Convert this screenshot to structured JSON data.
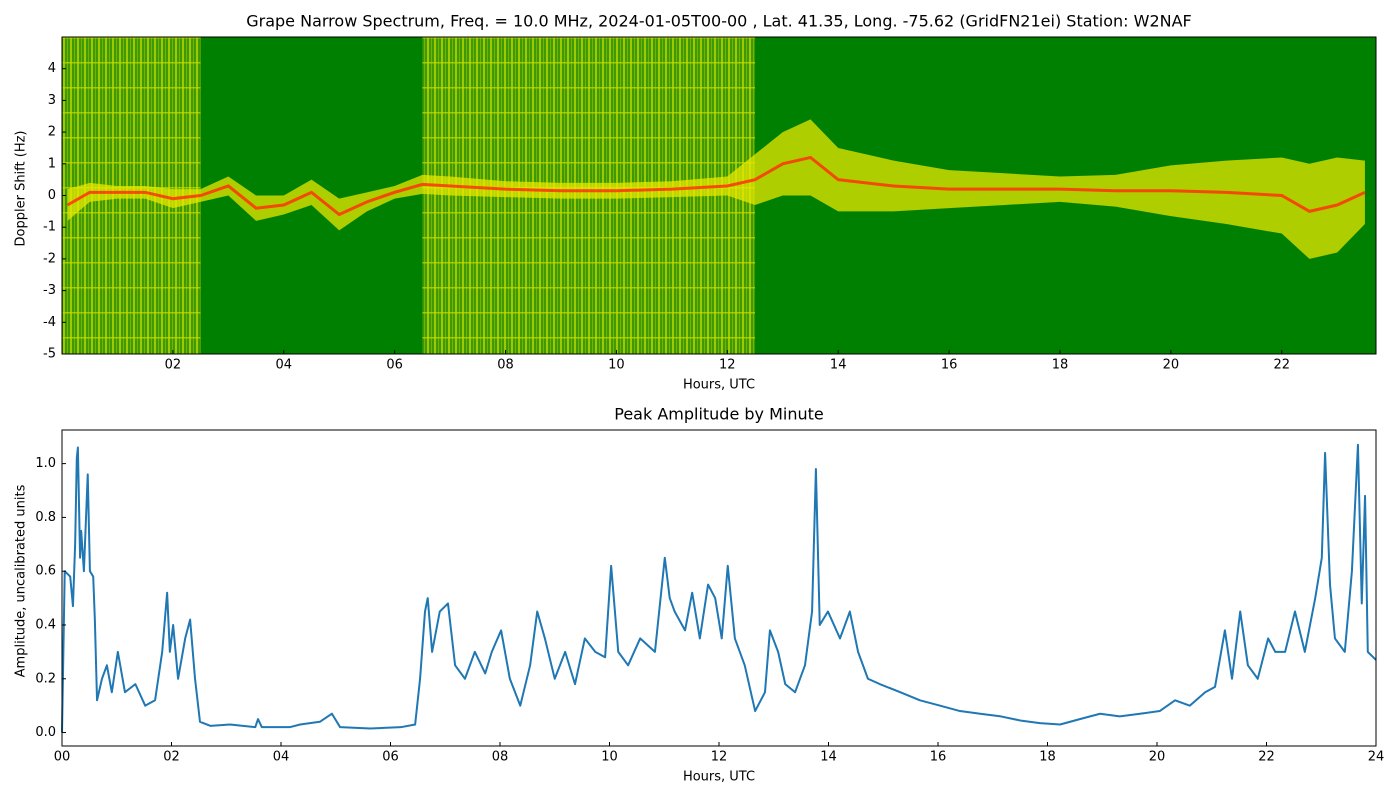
{
  "chart_data": [
    {
      "type": "spectrogram",
      "title": "Grape Narrow Spectrum, Freq. = 10.0 MHz, 2024-01-05T00-00 , Lat.  41.35, Long. -75.62 (GridFN21ei) Station: W2NAF",
      "xlabel": "Hours, UTC",
      "ylabel": "Doppler Shift (Hz)",
      "xlim": [
        0,
        23.7
      ],
      "ylim": [
        -5,
        5
      ],
      "xticks": [
        {
          "value": 2,
          "label": "02"
        },
        {
          "value": 4,
          "label": "04"
        },
        {
          "value": 6,
          "label": "06"
        },
        {
          "value": 8,
          "label": "08"
        },
        {
          "value": 10,
          "label": "10"
        },
        {
          "value": 12,
          "label": "12"
        },
        {
          "value": 14,
          "label": "14"
        },
        {
          "value": 16,
          "label": "16"
        },
        {
          "value": 18,
          "label": "18"
        },
        {
          "value": 20,
          "label": "20"
        },
        {
          "value": 22,
          "label": "22"
        }
      ],
      "yticks": [
        -5,
        -4,
        -3,
        -2,
        -1,
        0,
        1,
        2,
        3,
        4
      ],
      "background_color": "#008000",
      "spread_color": "#e8e800",
      "trace_color": "#ff3300",
      "active_intervals": [
        [
          0,
          2.5
        ],
        [
          6.5,
          12.5
        ]
      ],
      "x": [
        0.1,
        0.5,
        1,
        1.5,
        2,
        2.5,
        3,
        3.5,
        4,
        4.5,
        5,
        5.5,
        6,
        6.5,
        7,
        8,
        9,
        10,
        11,
        12,
        12.5,
        13,
        13.5,
        14,
        15,
        16,
        17,
        18,
        19,
        20,
        21,
        22,
        22.5,
        23,
        23.5
      ],
      "values": [
        -0.3,
        0.1,
        0.1,
        0.1,
        -0.1,
        0.0,
        0.3,
        -0.4,
        -0.3,
        0.1,
        -0.6,
        -0.2,
        0.1,
        0.35,
        0.3,
        0.2,
        0.15,
        0.15,
        0.2,
        0.3,
        0.5,
        1.0,
        1.2,
        0.5,
        0.3,
        0.2,
        0.2,
        0.2,
        0.15,
        0.15,
        0.1,
        0.0,
        -0.5,
        -0.3,
        0.1
      ],
      "spread": [
        0.5,
        0.3,
        0.2,
        0.2,
        0.3,
        0.2,
        0.3,
        0.4,
        0.3,
        0.4,
        0.5,
        0.3,
        0.2,
        0.3,
        0.3,
        0.25,
        0.25,
        0.25,
        0.25,
        0.3,
        0.8,
        1.0,
        1.2,
        1.0,
        0.8,
        0.6,
        0.5,
        0.4,
        0.5,
        0.8,
        1.0,
        1.2,
        1.5,
        1.5,
        1.0
      ]
    },
    {
      "type": "line",
      "title": "Peak Amplitude by Minute",
      "xlabel": "Hours, UTC",
      "ylabel": "Amplitude, uncalibrated units",
      "xlim": [
        0,
        24
      ],
      "ylim": [
        -0.05,
        1.125
      ],
      "xticks": [
        {
          "value": 0,
          "label": "00"
        },
        {
          "value": 2,
          "label": "02"
        },
        {
          "value": 4,
          "label": "04"
        },
        {
          "value": 6,
          "label": "06"
        },
        {
          "value": 8,
          "label": "08"
        },
        {
          "value": 10,
          "label": "10"
        },
        {
          "value": 12,
          "label": "12"
        },
        {
          "value": 14,
          "label": "14"
        },
        {
          "value": 16,
          "label": "16"
        },
        {
          "value": 18,
          "label": "18"
        },
        {
          "value": 20,
          "label": "20"
        },
        {
          "value": 22,
          "label": "22"
        },
        {
          "value": 24,
          "label": "24"
        }
      ],
      "yticks": [
        {
          "value": 0,
          "label": "0.0"
        },
        {
          "value": 0.2,
          "label": "0.2"
        },
        {
          "value": 0.4,
          "label": "0.4"
        },
        {
          "value": 0.6,
          "label": "0.6"
        },
        {
          "value": 0.8,
          "label": "0.8"
        },
        {
          "value": 1,
          "label": "1.0"
        }
      ],
      "color": "#1f77b4",
      "x": [
        0,
        0.05,
        0.15,
        0.2,
        0.24,
        0.27,
        0.29,
        0.33,
        0.35,
        0.4,
        0.47,
        0.51,
        0.57,
        0.6,
        0.64,
        0.73,
        0.82,
        0.91,
        1.02,
        1.15,
        1.34,
        1.52,
        1.7,
        1.83,
        1.92,
        1.97,
        2.03,
        2.12,
        2.25,
        2.34,
        2.43,
        2.52,
        2.71,
        3.07,
        3.53,
        3.58,
        3.65,
        4.16,
        4.35,
        4.71,
        4.93,
        5.08,
        5.63,
        6.19,
        6.45,
        6.54,
        6.63,
        6.68,
        6.76,
        6.9,
        7.05,
        7.18,
        7.36,
        7.54,
        7.73,
        7.85,
        8.02,
        8.18,
        8.37,
        8.55,
        8.68,
        8.82,
        9.0,
        9.19,
        9.37,
        9.55,
        9.74,
        9.92,
        10.03,
        10.16,
        10.34,
        10.56,
        10.83,
        11.01,
        11.1,
        11.19,
        11.38,
        11.51,
        11.65,
        11.8,
        11.93,
        12.05,
        12.16,
        12.29,
        12.47,
        12.66,
        12.84,
        12.93,
        13.08,
        13.21,
        13.39,
        13.57,
        13.7,
        13.77,
        13.84,
        13.99,
        14.21,
        14.39,
        14.54,
        14.72,
        14.94,
        15.31,
        15.67,
        16.04,
        16.4,
        16.77,
        17.15,
        17.5,
        17.86,
        18.23,
        18.59,
        18.96,
        19.32,
        19.69,
        20.05,
        20.33,
        20.6,
        20.88,
        21.06,
        21.24,
        21.37,
        21.52,
        21.66,
        21.84,
        22.03,
        22.16,
        22.34,
        22.52,
        22.7,
        22.89,
        23.01,
        23.07,
        23.16,
        23.25,
        23.43,
        23.56,
        23.67,
        23.74,
        23.8,
        23.85,
        24.0
      ],
      "values": [
        0.0,
        0.6,
        0.58,
        0.47,
        0.7,
        1.02,
        1.06,
        0.65,
        0.75,
        0.6,
        0.96,
        0.6,
        0.58,
        0.42,
        0.12,
        0.2,
        0.25,
        0.15,
        0.3,
        0.15,
        0.18,
        0.1,
        0.12,
        0.3,
        0.52,
        0.3,
        0.4,
        0.2,
        0.35,
        0.42,
        0.2,
        0.04,
        0.025,
        0.03,
        0.02,
        0.05,
        0.02,
        0.02,
        0.03,
        0.04,
        0.07,
        0.02,
        0.015,
        0.02,
        0.03,
        0.2,
        0.45,
        0.5,
        0.3,
        0.45,
        0.48,
        0.25,
        0.2,
        0.3,
        0.22,
        0.3,
        0.38,
        0.2,
        0.1,
        0.25,
        0.45,
        0.35,
        0.2,
        0.3,
        0.18,
        0.35,
        0.3,
        0.28,
        0.62,
        0.3,
        0.25,
        0.35,
        0.3,
        0.65,
        0.5,
        0.45,
        0.38,
        0.52,
        0.35,
        0.55,
        0.5,
        0.35,
        0.62,
        0.35,
        0.25,
        0.08,
        0.15,
        0.38,
        0.3,
        0.18,
        0.15,
        0.25,
        0.45,
        0.98,
        0.4,
        0.45,
        0.35,
        0.45,
        0.3,
        0.2,
        0.18,
        0.15,
        0.12,
        0.1,
        0.08,
        0.07,
        0.06,
        0.045,
        0.035,
        0.03,
        0.05,
        0.07,
        0.06,
        0.07,
        0.08,
        0.12,
        0.1,
        0.15,
        0.17,
        0.38,
        0.2,
        0.45,
        0.25,
        0.2,
        0.35,
        0.3,
        0.3,
        0.45,
        0.3,
        0.5,
        0.65,
        1.04,
        0.55,
        0.35,
        0.3,
        0.6,
        1.07,
        0.48,
        0.88,
        0.3,
        0.27
      ]
    }
  ]
}
